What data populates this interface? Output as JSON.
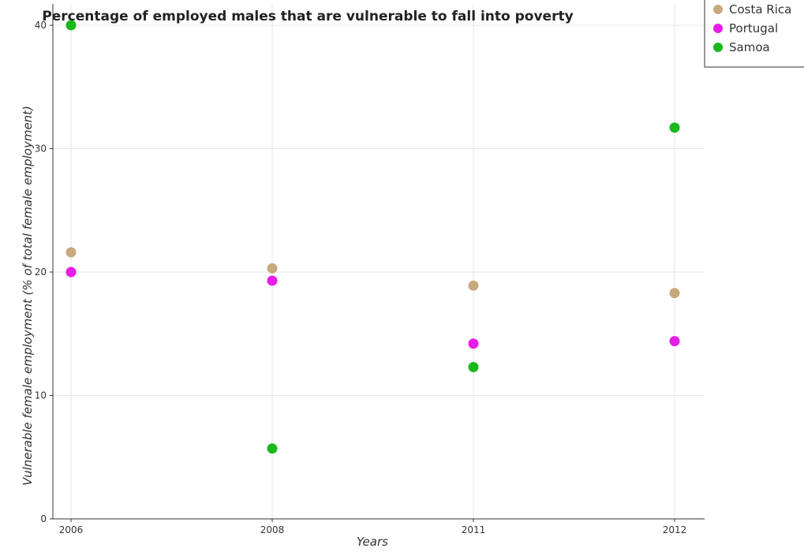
{
  "chart_data": {
    "type": "scatter",
    "title": "Percentage of employed males that are vulnerable to fall into poverty",
    "xlabel": "Years",
    "ylabel": "Vulnerable female employment (% of total female employment)",
    "categories": [
      "2006",
      "2008",
      "2011",
      "2012"
    ],
    "ylim": [
      0,
      42
    ],
    "yticks": [
      0,
      10,
      20,
      30,
      40
    ],
    "grid": true,
    "legend_position": "top-right",
    "series": [
      {
        "name": "Costa Rica",
        "color": "#c8a97e",
        "values": [
          21.6,
          20.3,
          18.9,
          18.3
        ]
      },
      {
        "name": "Portugal",
        "color": "#e81ce8",
        "values": [
          20.0,
          19.3,
          14.2,
          14.4
        ]
      },
      {
        "name": "Samoa",
        "color": "#1ab81a",
        "values": [
          40.0,
          5.7,
          12.3,
          31.7
        ]
      }
    ]
  }
}
